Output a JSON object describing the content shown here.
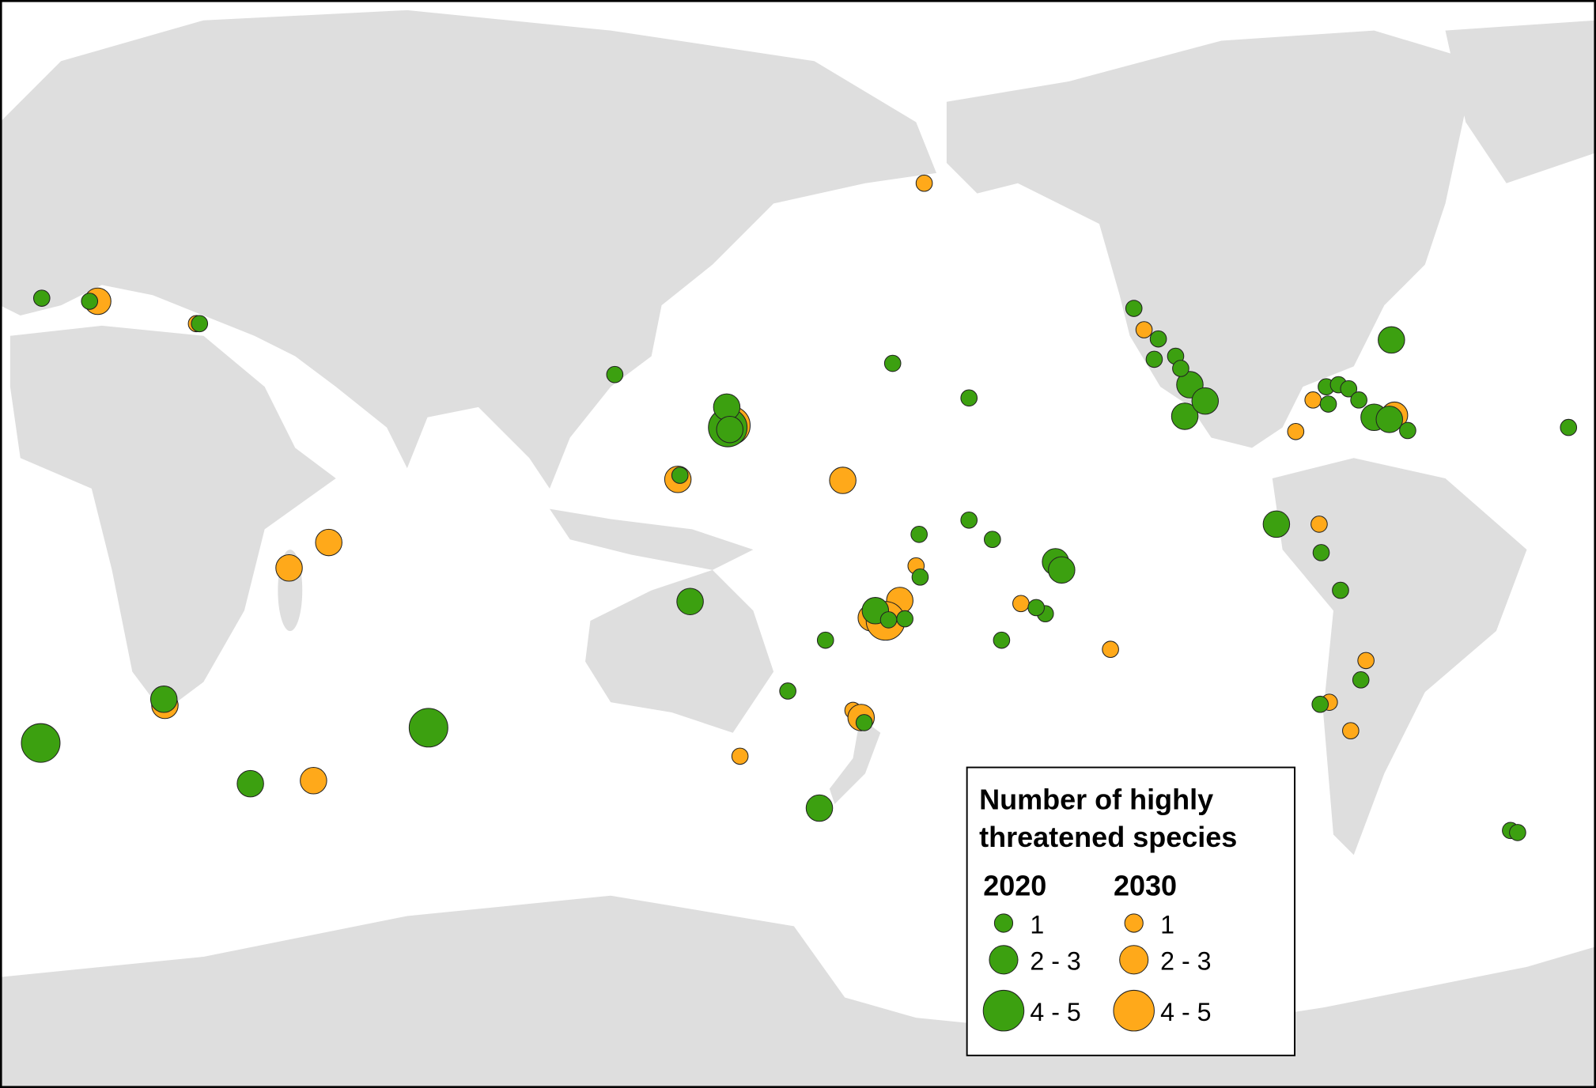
{
  "legend": {
    "title": [
      "Number of highly",
      "threatened species"
    ],
    "columns": [
      {
        "year": "2020",
        "labels": [
          "1",
          "2 - 3",
          "4 - 5"
        ]
      },
      {
        "year": "2030",
        "labels": [
          "1",
          "2 - 3",
          "4 - 5"
        ]
      }
    ]
  }
}
